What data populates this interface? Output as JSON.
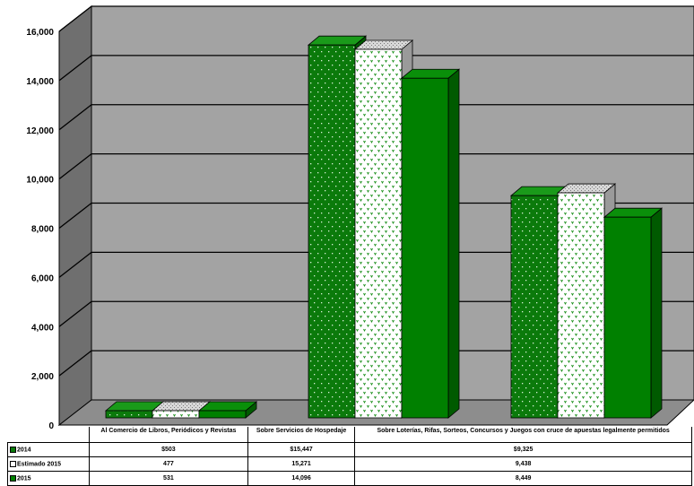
{
  "chart_data": {
    "type": "bar",
    "title": "",
    "xlabel": "",
    "ylabel": "",
    "ylim": [
      0,
      16000
    ],
    "yticks": [
      "0",
      "2,000",
      "4,000",
      "6,000",
      "8,000",
      "10,000",
      "12,000",
      "14,000",
      "16,000"
    ],
    "grid": true,
    "three_d": true,
    "categories": [
      "Al Comercio de Libros, Periódicos y Revistas",
      "Sobre Servicios de Hospedaje",
      "Sobre Loterías, Rifas, Sorteos, Concursos y Juegos con cruce de apuestas legalmente permitidos"
    ],
    "series": [
      {
        "name": "2014",
        "values": [
          503,
          15447,
          9325
        ],
        "labels": [
          "$503",
          "$15,447",
          "$9,325"
        ],
        "color": "#0a7a0a",
        "pattern": "dotted-green"
      },
      {
        "name": "Estimado 2015",
        "values": [
          477,
          15271,
          9438
        ],
        "labels": [
          "477",
          "15,271",
          "9,438"
        ],
        "color": "#ffffff",
        "pattern": "dotted-white"
      },
      {
        "name": "2015",
        "values": [
          531,
          14096,
          8449
        ],
        "labels": [
          "531",
          "14,096",
          "8,449"
        ],
        "color": "#008000",
        "pattern": "solid"
      }
    ],
    "colors": {
      "wall": "#a3a3a3",
      "side_wall": "#6f6f6f",
      "floor": "#8d8d8d",
      "grid": "#000000"
    }
  }
}
